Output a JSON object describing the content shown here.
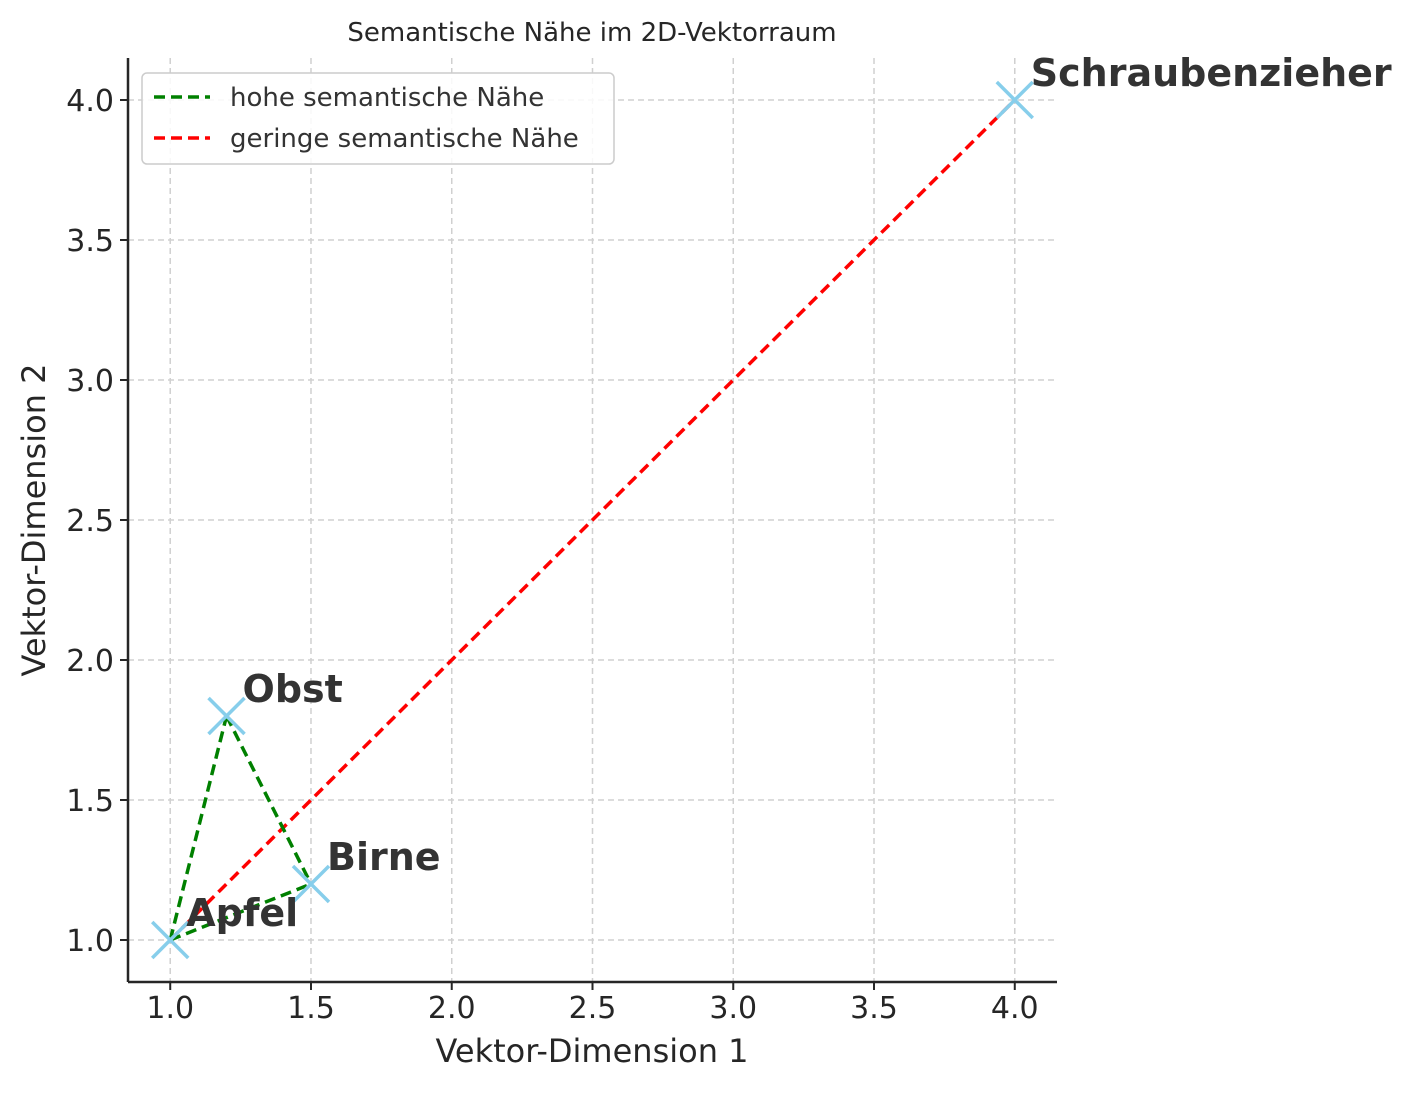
{
  "chart_data": {
    "type": "scatter",
    "title": "Semantische Nähe im 2D-Vektorraum",
    "xlabel": "Vektor-Dimension 1",
    "ylabel": "Vektor-Dimension 2",
    "xlim": [
      0.85,
      4.15
    ],
    "ylim": [
      0.85,
      4.15
    ],
    "x_ticks": [
      "1.0",
      "1.5",
      "2.0",
      "2.5",
      "3.0",
      "3.5",
      "4.0"
    ],
    "y_ticks": [
      "1.0",
      "1.5",
      "2.0",
      "2.5",
      "3.0",
      "3.5",
      "4.0"
    ],
    "grid": true,
    "legend_position": "top-left",
    "marker": "x",
    "marker_color": "#87CEEB",
    "points": [
      {
        "label": "Apfel",
        "x": 1.0,
        "y": 1.0
      },
      {
        "label": "Birne",
        "x": 1.5,
        "y": 1.2
      },
      {
        "label": "Obst",
        "x": 1.2,
        "y": 1.8
      },
      {
        "label": "Schraubenzieher",
        "x": 4.0,
        "y": 4.0
      }
    ],
    "series": [
      {
        "name": "hohe semantische Nähe",
        "color": "#008000",
        "style": "dashed",
        "segments": [
          [
            [
              1.0,
              1.0
            ],
            [
              1.2,
              1.8
            ]
          ],
          [
            [
              1.2,
              1.8
            ],
            [
              1.5,
              1.2
            ]
          ],
          [
            [
              1.0,
              1.0
            ],
            [
              1.5,
              1.2
            ]
          ]
        ]
      },
      {
        "name": "geringe semantische Nähe",
        "color": "#FF0000",
        "style": "dashed",
        "segments": [
          [
            [
              1.0,
              1.0
            ],
            [
              4.0,
              4.0
            ]
          ]
        ]
      }
    ]
  }
}
